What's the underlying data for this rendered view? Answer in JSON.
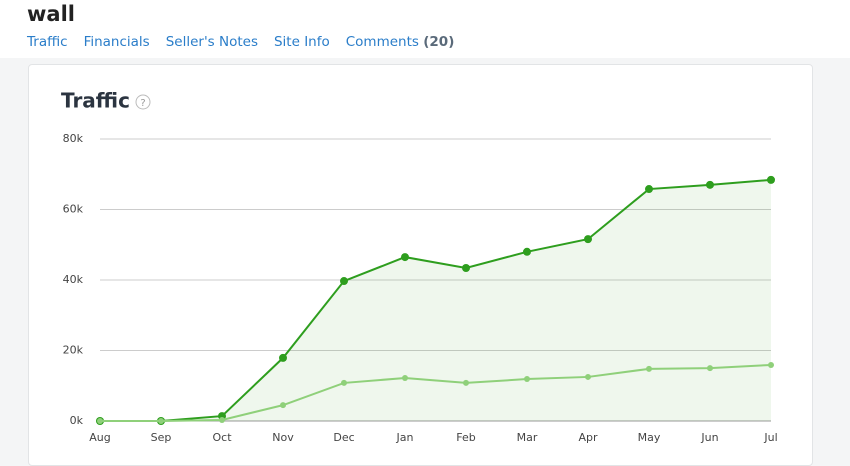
{
  "header": {
    "title": "wall"
  },
  "tabs": [
    {
      "label": "Traffic"
    },
    {
      "label": "Financials"
    },
    {
      "label": "Seller's Notes"
    },
    {
      "label": "Site Info"
    },
    {
      "label": "Comments",
      "count": "(20)"
    }
  ],
  "card": {
    "title": "Traffic",
    "help_icon": "?"
  },
  "chart_data": {
    "type": "line",
    "categories": [
      "Aug",
      "Sep",
      "Oct",
      "Nov",
      "Dec",
      "Jan",
      "Feb",
      "Mar",
      "Apr",
      "May",
      "Jun",
      "Jul"
    ],
    "series": [
      {
        "color": "#2e9e1e",
        "area": true,
        "values": [
          0,
          0,
          1400,
          17900,
          39700,
          46500,
          43400,
          48000,
          51600,
          65800,
          67000,
          68400
        ]
      },
      {
        "color": "#8fd07a",
        "values": [
          0,
          0,
          300,
          4500,
          10800,
          12200,
          10800,
          11900,
          12500,
          14800,
          15000,
          15900
        ]
      }
    ],
    "ylim": [
      0,
      80000
    ],
    "yticks": [
      {
        "value": 0,
        "label": "0k"
      },
      {
        "value": 20000,
        "label": "20k"
      },
      {
        "value": 40000,
        "label": "40k"
      },
      {
        "value": 60000,
        "label": "60k"
      },
      {
        "value": 80000,
        "label": "80k"
      }
    ],
    "grid": true
  }
}
